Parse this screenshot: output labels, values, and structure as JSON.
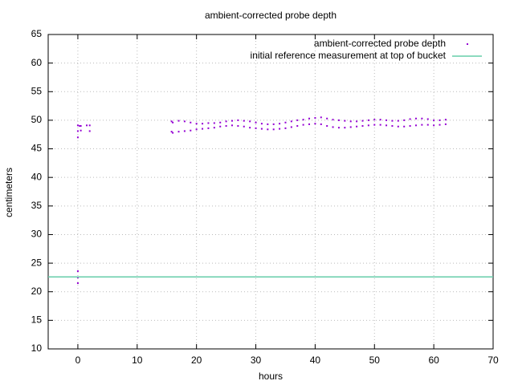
{
  "chart_data": {
    "type": "scatter",
    "title": "ambient-corrected probe depth",
    "x_label": "hours",
    "y_label": "centimeters",
    "xlim": [
      -5,
      70
    ],
    "xticks": [
      0,
      10,
      20,
      30,
      40,
      50,
      60,
      70
    ],
    "ylim": [
      10,
      65
    ],
    "yticks": [
      10,
      15,
      20,
      25,
      30,
      35,
      40,
      45,
      50,
      55,
      60,
      65
    ],
    "grid": true,
    "legend": "top right",
    "series": [
      {
        "name": "ambient-corrected probe depth",
        "type": "scatter",
        "color": "#9400d3",
        "x": [
          0,
          0,
          0.3,
          0.5,
          0.5,
          1.5,
          2,
          2,
          0,
          0,
          0,
          0,
          15.8,
          15.8,
          16,
          16,
          17,
          17,
          18,
          18,
          19,
          19,
          20,
          20,
          21,
          21,
          22,
          22,
          23,
          23,
          24,
          24,
          25,
          25,
          26,
          26,
          27,
          27,
          28,
          28,
          29,
          29,
          30,
          30,
          31,
          31,
          32,
          32,
          33,
          33,
          34,
          34,
          35,
          35,
          36,
          36,
          37,
          37,
          38,
          38,
          39,
          39,
          40,
          40,
          41,
          41,
          42,
          42,
          43,
          43,
          44,
          44,
          45,
          45,
          46,
          46,
          47,
          47,
          48,
          48,
          49,
          49,
          50,
          50,
          51,
          51,
          52,
          52,
          53,
          53,
          54,
          54,
          55,
          55,
          56,
          56,
          57,
          57,
          58,
          58,
          59,
          59,
          60,
          60,
          61,
          61,
          62,
          62
        ],
        "values": [
          49.1,
          48.1,
          49.0,
          49.0,
          48.2,
          49.1,
          49.1,
          48.1,
          47,
          23.6,
          22.5,
          21.5,
          49.8,
          48.0,
          49.6,
          47.8,
          49.9,
          48.0,
          49.8,
          48.1,
          49.6,
          48.2,
          49.4,
          48.4,
          49.4,
          48.5,
          49.5,
          48.6,
          49.5,
          48.7,
          49.6,
          48.9,
          49.8,
          49.0,
          49.9,
          49.1,
          50.0,
          49.0,
          49.9,
          48.9,
          49.8,
          48.7,
          49.6,
          48.6,
          49.4,
          48.5,
          49.3,
          48.4,
          49.3,
          48.4,
          49.4,
          48.5,
          49.6,
          48.6,
          49.8,
          48.8,
          50.0,
          49.0,
          50.1,
          49.2,
          50.3,
          49.3,
          50.4,
          49.4,
          50.5,
          49.3,
          50.3,
          49.0,
          50.1,
          48.8,
          50.0,
          48.7,
          49.9,
          48.7,
          49.8,
          48.8,
          49.8,
          48.9,
          49.9,
          49.0,
          50.0,
          49.1,
          50.1,
          49.2,
          50.1,
          49.2,
          50.0,
          49.1,
          49.9,
          49.0,
          49.9,
          48.9,
          50.0,
          48.9,
          50.2,
          49.0,
          50.3,
          49.1,
          50.3,
          49.2,
          50.2,
          49.2,
          50.0,
          49.1,
          50.0,
          49.2,
          50.1,
          49.3
        ]
      },
      {
        "name": "initial reference measurement at top of bucket",
        "type": "line",
        "color": "#66cdaa",
        "x": [
          -5,
          70
        ],
        "values": [
          22.6,
          22.6
        ]
      }
    ]
  }
}
